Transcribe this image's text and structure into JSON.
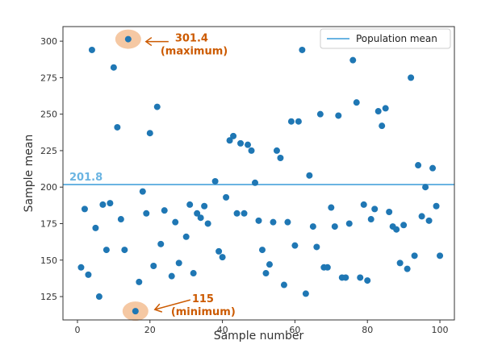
{
  "chart_data": {
    "type": "scatter",
    "xlabel": "Sample number",
    "ylabel": "Sample mean",
    "xlim": [
      -4,
      104
    ],
    "ylim": [
      109,
      310
    ],
    "xticks": [
      0,
      20,
      40,
      60,
      80,
      100
    ],
    "yticks": [
      125,
      150,
      175,
      200,
      225,
      250,
      275,
      300
    ],
    "grid": false,
    "legend": {
      "position": "top-right",
      "label": "Population mean"
    },
    "colors": {
      "points": "#1f77b4",
      "mean_line": "#6ab4e2",
      "annotation": "#cc5a00",
      "highlight": "#f5c8a3"
    },
    "mean": {
      "value": 201.8,
      "label": "201.8"
    },
    "max_annotation": {
      "x": 14,
      "y": 301.4,
      "value": "301.4",
      "label": "(maximum)"
    },
    "min_annotation": {
      "x": 16,
      "y": 115,
      "value": "115",
      "label": "(minimum)"
    },
    "points": [
      [
        1,
        145
      ],
      [
        2,
        185
      ],
      [
        3,
        140
      ],
      [
        4,
        294
      ],
      [
        5,
        172
      ],
      [
        6,
        125
      ],
      [
        7,
        188
      ],
      [
        8,
        157
      ],
      [
        9,
        189
      ],
      [
        10,
        282
      ],
      [
        11,
        241
      ],
      [
        12,
        178
      ],
      [
        13,
        157
      ],
      [
        14,
        301.4
      ],
      [
        16,
        115
      ],
      [
        17,
        135
      ],
      [
        18,
        197
      ],
      [
        19,
        182
      ],
      [
        20,
        237
      ],
      [
        21,
        146
      ],
      [
        22,
        255
      ],
      [
        23,
        161
      ],
      [
        24,
        184
      ],
      [
        26,
        139
      ],
      [
        27,
        176
      ],
      [
        28,
        148
      ],
      [
        30,
        166
      ],
      [
        31,
        188
      ],
      [
        32,
        141
      ],
      [
        33,
        182
      ],
      [
        34,
        179
      ],
      [
        35,
        187
      ],
      [
        36,
        175
      ],
      [
        38,
        204
      ],
      [
        39,
        156
      ],
      [
        40,
        152
      ],
      [
        41,
        193
      ],
      [
        42,
        232
      ],
      [
        43,
        235
      ],
      [
        44,
        182
      ],
      [
        45,
        230
      ],
      [
        46,
        182
      ],
      [
        47,
        229
      ],
      [
        48,
        225
      ],
      [
        49,
        203
      ],
      [
        50,
        177
      ],
      [
        51,
        157
      ],
      [
        52,
        141
      ],
      [
        53,
        147
      ],
      [
        54,
        176
      ],
      [
        55,
        225
      ],
      [
        56,
        220
      ],
      [
        57,
        133
      ],
      [
        58,
        176
      ],
      [
        59,
        245
      ],
      [
        60,
        160
      ],
      [
        61,
        245
      ],
      [
        62,
        294
      ],
      [
        63,
        127
      ],
      [
        64,
        208
      ],
      [
        65,
        173
      ],
      [
        66,
        159
      ],
      [
        67,
        250
      ],
      [
        68,
        145
      ],
      [
        69,
        145
      ],
      [
        70,
        186
      ],
      [
        71,
        173
      ],
      [
        72,
        249
      ],
      [
        73,
        138
      ],
      [
        74,
        138
      ],
      [
        75,
        175
      ],
      [
        76,
        287
      ],
      [
        77,
        258
      ],
      [
        78,
        138
      ],
      [
        79,
        188
      ],
      [
        80,
        136
      ],
      [
        81,
        178
      ],
      [
        82,
        185
      ],
      [
        83,
        252
      ],
      [
        84,
        242
      ],
      [
        85,
        254
      ],
      [
        86,
        183
      ],
      [
        87,
        173
      ],
      [
        88,
        171
      ],
      [
        89,
        148
      ],
      [
        90,
        174
      ],
      [
        91,
        144
      ],
      [
        92,
        275
      ],
      [
        93,
        153
      ],
      [
        94,
        215
      ],
      [
        95,
        180
      ],
      [
        96,
        200
      ],
      [
        97,
        177
      ],
      [
        98,
        213
      ],
      [
        99,
        187
      ],
      [
        100,
        153
      ]
    ]
  }
}
